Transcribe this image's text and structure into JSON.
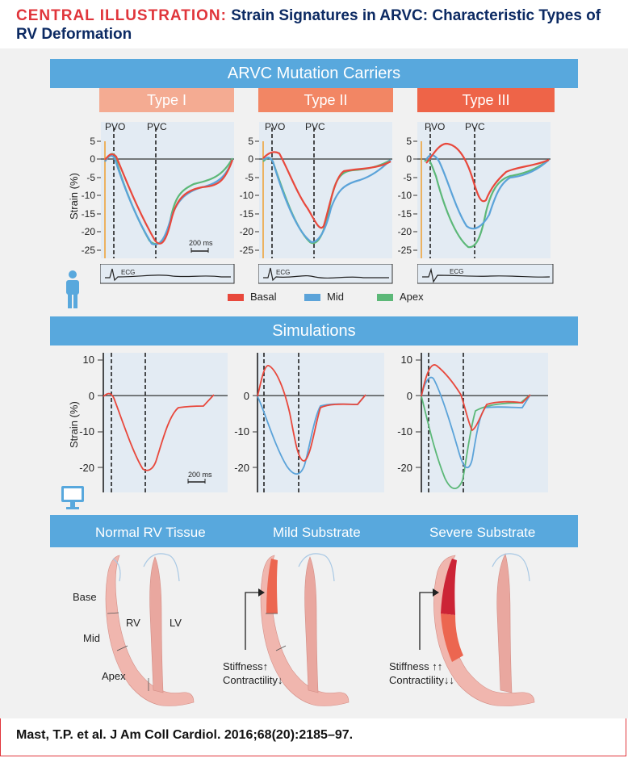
{
  "header": {
    "lead": "CENTRAL ILLUSTRATION:",
    "title": "Strain Signatures in ARVC: Characteristic Types of RV Deformation"
  },
  "sections": {
    "carriers": "ARVC Mutation Carriers",
    "simulations": "Simulations"
  },
  "types": [
    "Type I",
    "Type II",
    "Type III"
  ],
  "legend": {
    "basal": "Basal",
    "mid": "Mid",
    "apex": "Apex"
  },
  "axis": {
    "strain_label": "Strain (%)",
    "pvo": "PVO",
    "pvc": "PVC",
    "ecg": "ECG",
    "scale": "200 ms"
  },
  "top_yticks": [
    "5",
    "0",
    "-5",
    "-10",
    "-15",
    "-20",
    "-25"
  ],
  "sim_yticks": [
    "10",
    "0",
    "-10",
    "-20"
  ],
  "substrates": [
    "Normal RV Tissue",
    "Mild Substrate",
    "Severe Substrate"
  ],
  "heart_labels": {
    "base": "Base",
    "mid": "Mid",
    "apex": "Apex",
    "rv": "RV",
    "lv": "LV"
  },
  "mild_note": {
    "stiffness": "Stiffness↑",
    "contractility": "Contractility↓"
  },
  "severe_note": {
    "stiffness": "Stiffness ↑↑",
    "contractility": "Contractility↓↓"
  },
  "citation": "Mast, T.P. et al. J Am Coll Cardiol. 2016;68(20):2185–97.",
  "colors": {
    "basal": "#e8483c",
    "mid": "#5ba3d9",
    "apex": "#5cb878",
    "band": "#58a8dd",
    "type1": "#f4ab92",
    "type2": "#f28664",
    "type3": "#ee6448",
    "plot_bg": "#e3ebf3"
  }
}
